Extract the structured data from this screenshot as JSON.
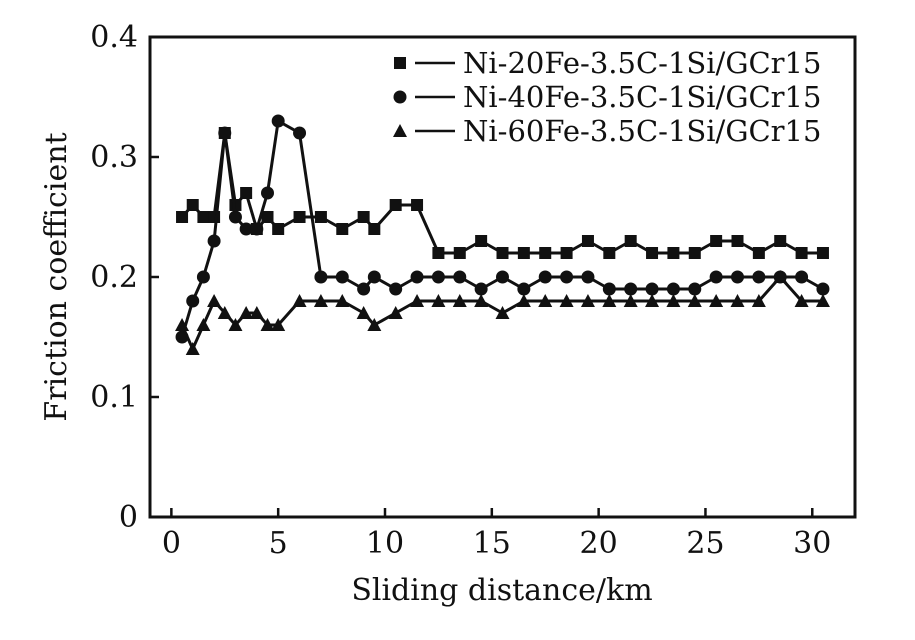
{
  "chart_data": {
    "type": "line",
    "title": "",
    "xlabel": "Sliding distance/km",
    "ylabel": "Friction coefficient",
    "xlim": [
      -1,
      32
    ],
    "ylim": [
      0,
      0.4
    ],
    "xticks": [
      0,
      5,
      10,
      15,
      20,
      25,
      30
    ],
    "yticks": [
      0,
      0.1,
      0.2,
      0.3,
      0.4
    ],
    "ytick_labels": [
      "0",
      "0.1",
      "0.2",
      "0.3",
      "0.4"
    ],
    "grid": false,
    "legend_position": "top-right",
    "series": [
      {
        "name": "Ni-20Fe-3.5C-1Si/GCr15",
        "marker": "square",
        "color": "#111111",
        "x": [
          0.5,
          1.0,
          1.5,
          2.0,
          2.5,
          3.0,
          3.5,
          4.0,
          4.5,
          5.0,
          6.0,
          7.0,
          8.0,
          9.0,
          9.5,
          10.5,
          11.5,
          12.5,
          13.5,
          14.5,
          15.5,
          16.5,
          17.5,
          18.5,
          19.5,
          20.5,
          21.5,
          22.5,
          23.5,
          24.5,
          25.5,
          26.5,
          27.5,
          28.5,
          29.5,
          30.5
        ],
        "y": [
          0.25,
          0.26,
          0.25,
          0.25,
          0.32,
          0.26,
          0.27,
          0.24,
          0.25,
          0.24,
          0.25,
          0.25,
          0.24,
          0.25,
          0.24,
          0.26,
          0.26,
          0.22,
          0.22,
          0.23,
          0.22,
          0.22,
          0.22,
          0.22,
          0.23,
          0.22,
          0.23,
          0.22,
          0.22,
          0.22,
          0.23,
          0.23,
          0.22,
          0.23,
          0.22,
          0.22
        ]
      },
      {
        "name": "Ni-40Fe-3.5C-1Si/GCr15",
        "marker": "circle",
        "color": "#111111",
        "x": [
          0.5,
          1.0,
          1.5,
          2.0,
          2.5,
          3.0,
          3.5,
          4.0,
          4.5,
          5.0,
          6.0,
          7.0,
          8.0,
          9.0,
          9.5,
          10.5,
          11.5,
          12.5,
          13.5,
          14.5,
          15.5,
          16.5,
          17.5,
          18.5,
          19.5,
          20.5,
          21.5,
          22.5,
          23.5,
          24.5,
          25.5,
          26.5,
          27.5,
          28.5,
          29.5,
          30.5
        ],
        "y": [
          0.15,
          0.18,
          0.2,
          0.23,
          0.32,
          0.25,
          0.24,
          0.24,
          0.27,
          0.33,
          0.32,
          0.2,
          0.2,
          0.19,
          0.2,
          0.19,
          0.2,
          0.2,
          0.2,
          0.19,
          0.2,
          0.19,
          0.2,
          0.2,
          0.2,
          0.19,
          0.19,
          0.19,
          0.19,
          0.19,
          0.2,
          0.2,
          0.2,
          0.2,
          0.2,
          0.19
        ]
      },
      {
        "name": "Ni-60Fe-3.5C-1Si/GCr15",
        "marker": "triangle",
        "color": "#111111",
        "x": [
          0.5,
          1.0,
          1.5,
          2.0,
          2.5,
          3.0,
          3.5,
          4.0,
          4.5,
          5.0,
          6.0,
          7.0,
          8.0,
          9.0,
          9.5,
          10.5,
          11.5,
          12.5,
          13.5,
          14.5,
          15.5,
          16.5,
          17.5,
          18.5,
          19.5,
          20.5,
          21.5,
          22.5,
          23.5,
          24.5,
          25.5,
          26.5,
          27.5,
          28.5,
          29.5,
          30.5
        ],
        "y": [
          0.16,
          0.14,
          0.16,
          0.18,
          0.17,
          0.16,
          0.17,
          0.17,
          0.16,
          0.16,
          0.18,
          0.18,
          0.18,
          0.17,
          0.16,
          0.17,
          0.18,
          0.18,
          0.18,
          0.18,
          0.17,
          0.18,
          0.18,
          0.18,
          0.18,
          0.18,
          0.18,
          0.18,
          0.18,
          0.18,
          0.18,
          0.18,
          0.18,
          0.2,
          0.18,
          0.18
        ]
      }
    ]
  }
}
